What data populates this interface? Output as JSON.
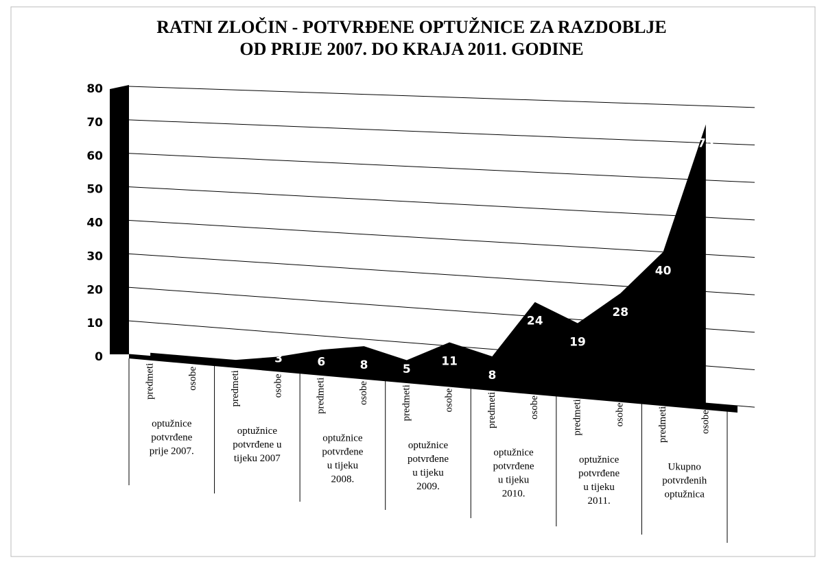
{
  "chart_data": {
    "type": "area",
    "title": [
      "RATNI ZLOČIN - POTVRĐENE OPTUŽNICE ZA RAZDOBLJE",
      "OD  PRIJE 2007. DO KRAJA 2011. GODINE"
    ],
    "categories": [
      "predmeti",
      "osobe",
      "predmeti",
      "osobe",
      "predmeti",
      "osobe",
      "predmeti",
      "osobe",
      "predmeti",
      "osobe",
      "predmeti",
      "osobe",
      "predmeti",
      "osobe"
    ],
    "groups": [
      [
        "optužnice",
        "potvrđene",
        "prije 2007."
      ],
      [
        "optužnice",
        "potvrđene u",
        "tijeku 2007"
      ],
      [
        "optužnice",
        "potvrđene",
        "u tijeku",
        "2008."
      ],
      [
        "optužnice",
        "potvrđene",
        "u tijeku",
        "2009."
      ],
      [
        "optužnice",
        "potvrđene",
        "u tijeku",
        "2010."
      ],
      [
        "optužnice",
        "potvrđene",
        "u tijeku",
        "2011."
      ],
      [
        "Ukupno",
        "potvrđenih",
        "optužnica"
      ]
    ],
    "values": [
      1,
      1,
      1,
      3,
      6,
      8,
      5,
      11,
      8,
      24,
      19,
      28,
      40,
      75
    ],
    "color": "#000000",
    "ylim": [
      0,
      80
    ],
    "yticks": [
      0,
      10,
      20,
      30,
      40,
      50,
      60,
      70,
      80
    ],
    "grid": true
  }
}
